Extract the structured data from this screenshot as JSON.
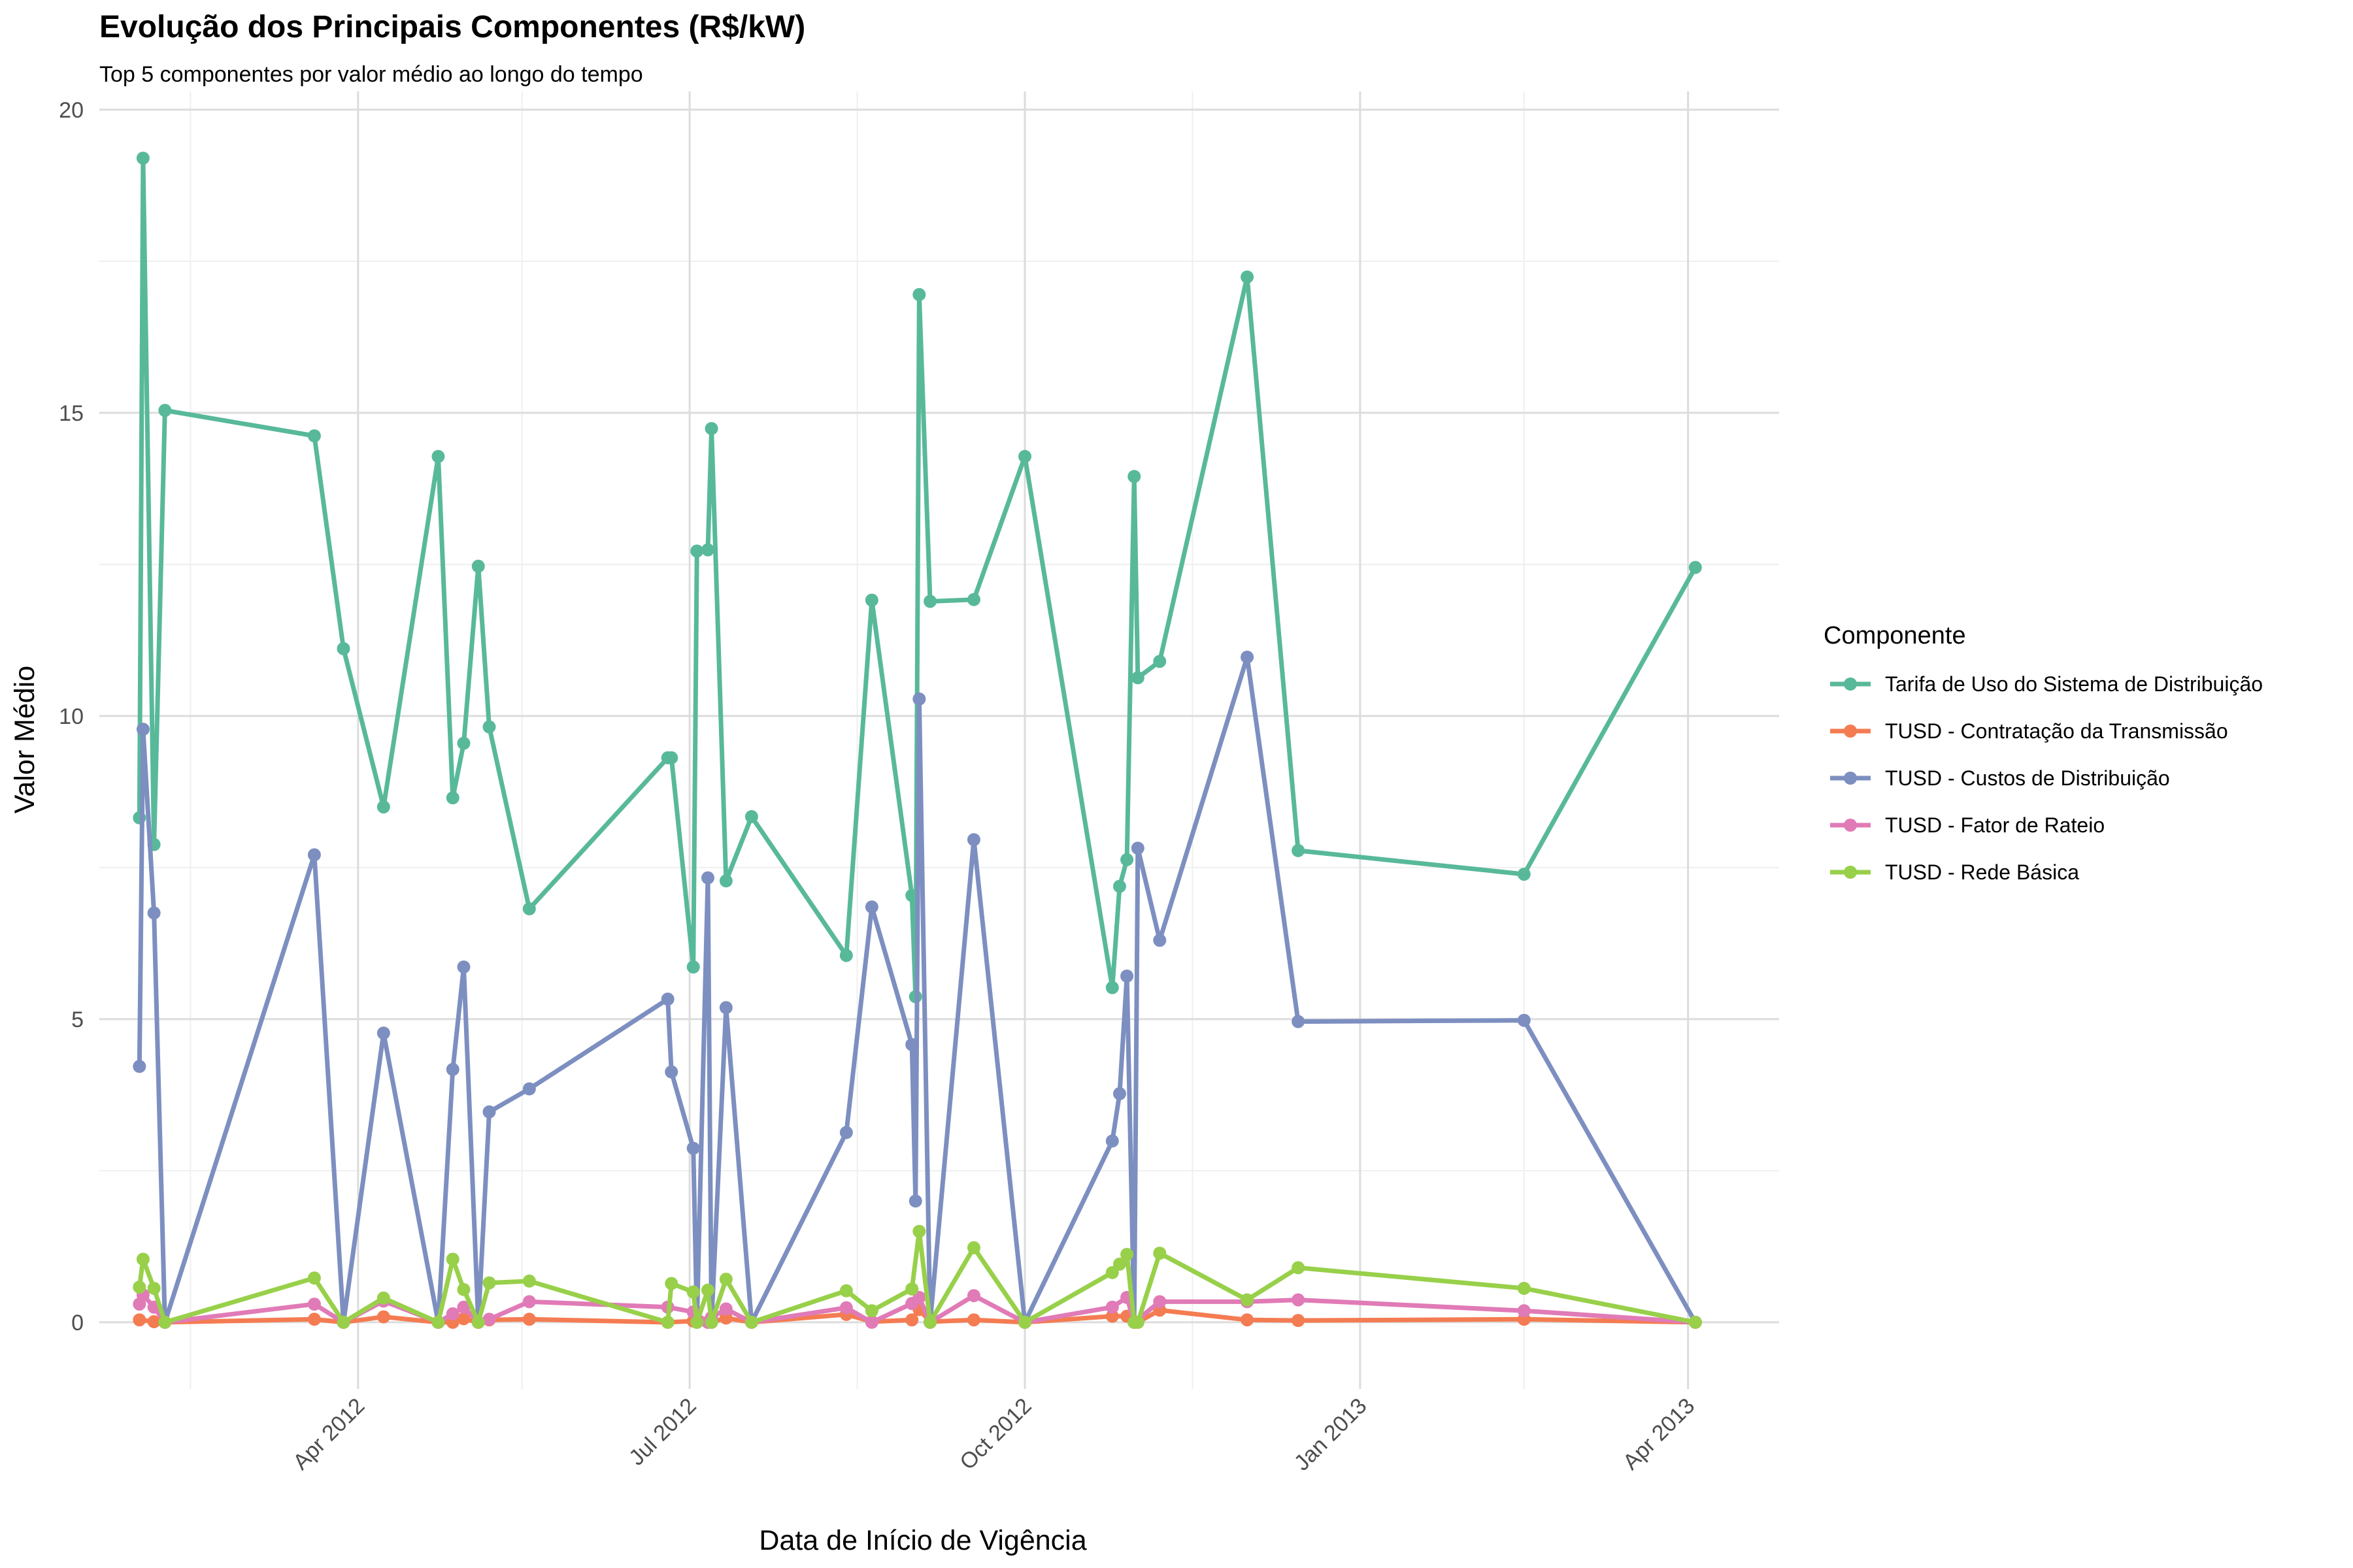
{
  "chart_data": {
    "type": "line",
    "title": "Evolução dos Principais Componentes (R$/kW)",
    "subtitle": "Top 5 componentes por valor médio ao longo do tempo",
    "xlabel": "Data de Início de Vigência",
    "ylabel": "Valor Médio",
    "x_axis": {
      "type": "date",
      "range": [
        "2012-01-21",
        "2013-04-26"
      ],
      "ticks": [
        {
          "date": "2012-04-01",
          "label": "Apr 2012"
        },
        {
          "date": "2012-07-01",
          "label": "Jul 2012"
        },
        {
          "date": "2012-10-01",
          "label": "Oct 2012"
        },
        {
          "date": "2013-01-01",
          "label": "Jan 2013"
        },
        {
          "date": "2013-04-01",
          "label": "Apr 2013"
        }
      ],
      "minor_ticks": [
        "2012-02-15",
        "2012-05-16",
        "2012-08-16",
        "2012-11-16",
        "2013-02-15"
      ]
    },
    "ylim": [
      -1.1,
      20.3
    ],
    "y_ticks": [
      0,
      5,
      10,
      15,
      20
    ],
    "y_minor_ticks": [
      2.5,
      7.5,
      12.5,
      17.5
    ],
    "grid": true,
    "legend": {
      "title": "Componente",
      "position": "right"
    },
    "series": [
      {
        "name": "Tarifa de Uso do Sistema de Distribuição",
        "color": "#58b99a",
        "points": [
          [
            "2012-02-01",
            8.32
          ],
          [
            "2012-02-02",
            19.2
          ],
          [
            "2012-02-05",
            7.88
          ],
          [
            "2012-02-08",
            15.04
          ],
          [
            "2012-03-20",
            14.62
          ],
          [
            "2012-03-28",
            11.11
          ],
          [
            "2012-04-08",
            8.5
          ],
          [
            "2012-04-23",
            14.28
          ],
          [
            "2012-04-27",
            8.65
          ],
          [
            "2012-04-30",
            9.55
          ],
          [
            "2012-05-04",
            12.47
          ],
          [
            "2012-05-07",
            9.82
          ],
          [
            "2012-05-18",
            6.82
          ],
          [
            "2012-06-25",
            9.31
          ],
          [
            "2012-06-26",
            9.31
          ],
          [
            "2012-07-02",
            5.86
          ],
          [
            "2012-07-03",
            12.72
          ],
          [
            "2012-07-06",
            12.74
          ],
          [
            "2012-07-07",
            14.74
          ],
          [
            "2012-07-11",
            7.28
          ],
          [
            "2012-07-18",
            8.34
          ],
          [
            "2012-08-13",
            6.05
          ],
          [
            "2012-08-20",
            11.91
          ],
          [
            "2012-08-31",
            7.04
          ],
          [
            "2012-09-01",
            5.37
          ],
          [
            "2012-09-02",
            16.95
          ],
          [
            "2012-09-05",
            11.89
          ],
          [
            "2012-09-17",
            11.92
          ],
          [
            "2012-10-01",
            14.28
          ],
          [
            "2012-10-25",
            5.52
          ],
          [
            "2012-10-27",
            7.19
          ],
          [
            "2012-10-29",
            7.63
          ],
          [
            "2012-10-31",
            13.95
          ],
          [
            "2012-11-01",
            10.63
          ],
          [
            "2012-11-07",
            10.9
          ],
          [
            "2012-12-01",
            17.24
          ],
          [
            "2012-12-15",
            7.78
          ],
          [
            "2013-02-15",
            7.39
          ],
          [
            "2013-04-03",
            12.45
          ]
        ]
      },
      {
        "name": "TUSD - Contratação da Transmissão",
        "color": "#f47c52",
        "points": [
          [
            "2012-02-01",
            0.04
          ],
          [
            "2012-02-05",
            0.01
          ],
          [
            "2012-02-08",
            0.0
          ],
          [
            "2012-03-20",
            0.05
          ],
          [
            "2012-03-28",
            0.0
          ],
          [
            "2012-04-08",
            0.09
          ],
          [
            "2012-04-23",
            0.0
          ],
          [
            "2012-04-27",
            0.0
          ],
          [
            "2012-04-30",
            0.06
          ],
          [
            "2012-05-04",
            0.0
          ],
          [
            "2012-05-07",
            0.04
          ],
          [
            "2012-05-18",
            0.05
          ],
          [
            "2012-06-25",
            0.0
          ],
          [
            "2012-07-02",
            0.02
          ],
          [
            "2012-07-06",
            0.0
          ],
          [
            "2012-07-07",
            0.0
          ],
          [
            "2012-07-11",
            0.07
          ],
          [
            "2012-07-18",
            0.0
          ],
          [
            "2012-08-13",
            0.13
          ],
          [
            "2012-08-20",
            0.01
          ],
          [
            "2012-08-31",
            0.04
          ],
          [
            "2012-09-02",
            0.21
          ],
          [
            "2012-09-05",
            0.01
          ],
          [
            "2012-09-17",
            0.04
          ],
          [
            "2012-10-01",
            0.0
          ],
          [
            "2012-10-25",
            0.1
          ],
          [
            "2012-10-29",
            0.1
          ],
          [
            "2012-10-31",
            0.0
          ],
          [
            "2012-11-01",
            0.0
          ],
          [
            "2012-11-07",
            0.2
          ],
          [
            "2012-12-01",
            0.04
          ],
          [
            "2012-12-15",
            0.03
          ],
          [
            "2013-02-15",
            0.05
          ],
          [
            "2013-04-03",
            0.0
          ]
        ]
      },
      {
        "name": "TUSD - Custos de Distribuição",
        "color": "#7d8fc0",
        "points": [
          [
            "2012-02-01",
            4.22
          ],
          [
            "2012-02-02",
            9.78
          ],
          [
            "2012-02-05",
            6.75
          ],
          [
            "2012-02-08",
            0.0
          ],
          [
            "2012-03-20",
            7.71
          ],
          [
            "2012-03-28",
            0.0
          ],
          [
            "2012-04-08",
            4.77
          ],
          [
            "2012-04-23",
            0.0
          ],
          [
            "2012-04-27",
            4.17
          ],
          [
            "2012-04-30",
            5.86
          ],
          [
            "2012-05-04",
            0.0
          ],
          [
            "2012-05-07",
            3.47
          ],
          [
            "2012-05-18",
            3.85
          ],
          [
            "2012-06-25",
            5.33
          ],
          [
            "2012-06-26",
            4.13
          ],
          [
            "2012-07-02",
            2.87
          ],
          [
            "2012-07-03",
            0.0
          ],
          [
            "2012-07-06",
            7.33
          ],
          [
            "2012-07-07",
            0.0
          ],
          [
            "2012-07-11",
            5.19
          ],
          [
            "2012-07-18",
            0.0
          ],
          [
            "2012-08-13",
            3.13
          ],
          [
            "2012-08-20",
            6.85
          ],
          [
            "2012-08-31",
            4.58
          ],
          [
            "2012-09-01",
            2.0
          ],
          [
            "2012-09-02",
            10.28
          ],
          [
            "2012-09-05",
            0.0
          ],
          [
            "2012-09-17",
            7.96
          ],
          [
            "2012-10-01",
            0.0
          ],
          [
            "2012-10-25",
            2.99
          ],
          [
            "2012-10-27",
            3.77
          ],
          [
            "2012-10-29",
            5.71
          ],
          [
            "2012-10-31",
            0.0
          ],
          [
            "2012-11-01",
            7.82
          ],
          [
            "2012-11-07",
            6.3
          ],
          [
            "2012-12-01",
            10.97
          ],
          [
            "2012-12-15",
            4.96
          ],
          [
            "2013-02-15",
            4.98
          ],
          [
            "2013-04-03",
            0.0
          ]
        ]
      },
      {
        "name": "TUSD - Fator de Rateio",
        "color": "#e07bb7",
        "points": [
          [
            "2012-02-01",
            0.3
          ],
          [
            "2012-02-02",
            0.45
          ],
          [
            "2012-02-05",
            0.25
          ],
          [
            "2012-02-08",
            0.0
          ],
          [
            "2012-03-20",
            0.3
          ],
          [
            "2012-03-28",
            0.0
          ],
          [
            "2012-04-08",
            0.35
          ],
          [
            "2012-04-23",
            0.0
          ],
          [
            "2012-04-27",
            0.14
          ],
          [
            "2012-04-30",
            0.25
          ],
          [
            "2012-05-04",
            0.0
          ],
          [
            "2012-05-07",
            0.05
          ],
          [
            "2012-05-18",
            0.34
          ],
          [
            "2012-06-25",
            0.25
          ],
          [
            "2012-07-02",
            0.17
          ],
          [
            "2012-07-06",
            0.0
          ],
          [
            "2012-07-07",
            0.08
          ],
          [
            "2012-07-11",
            0.22
          ],
          [
            "2012-07-18",
            0.0
          ],
          [
            "2012-08-13",
            0.24
          ],
          [
            "2012-08-20",
            0.0
          ],
          [
            "2012-08-31",
            0.31
          ],
          [
            "2012-09-02",
            0.41
          ],
          [
            "2012-09-05",
            0.0
          ],
          [
            "2012-09-17",
            0.44
          ],
          [
            "2012-10-01",
            0.0
          ],
          [
            "2012-10-25",
            0.25
          ],
          [
            "2012-10-29",
            0.41
          ],
          [
            "2012-10-31",
            0.0
          ],
          [
            "2012-11-07",
            0.34
          ],
          [
            "2012-12-01",
            0.34
          ],
          [
            "2012-12-15",
            0.37
          ],
          [
            "2013-02-15",
            0.19
          ],
          [
            "2013-04-03",
            0.0
          ]
        ]
      },
      {
        "name": "TUSD - Rede Básica",
        "color": "#98d04a",
        "points": [
          [
            "2012-02-01",
            0.58
          ],
          [
            "2012-02-02",
            1.04
          ],
          [
            "2012-02-05",
            0.56
          ],
          [
            "2012-02-08",
            0.0
          ],
          [
            "2012-03-20",
            0.73
          ],
          [
            "2012-03-28",
            0.0
          ],
          [
            "2012-04-08",
            0.4
          ],
          [
            "2012-04-23",
            0.0
          ],
          [
            "2012-04-27",
            1.04
          ],
          [
            "2012-04-30",
            0.54
          ],
          [
            "2012-05-04",
            0.0
          ],
          [
            "2012-05-07",
            0.65
          ],
          [
            "2012-05-18",
            0.68
          ],
          [
            "2012-06-25",
            0.0
          ],
          [
            "2012-06-26",
            0.64
          ],
          [
            "2012-07-02",
            0.5
          ],
          [
            "2012-07-03",
            0.0
          ],
          [
            "2012-07-06",
            0.53
          ],
          [
            "2012-07-07",
            0.0
          ],
          [
            "2012-07-11",
            0.71
          ],
          [
            "2012-07-18",
            0.0
          ],
          [
            "2012-08-13",
            0.52
          ],
          [
            "2012-08-20",
            0.19
          ],
          [
            "2012-08-31",
            0.55
          ],
          [
            "2012-09-02",
            1.5
          ],
          [
            "2012-09-05",
            0.0
          ],
          [
            "2012-09-17",
            1.23
          ],
          [
            "2012-10-01",
            0.0
          ],
          [
            "2012-10-25",
            0.82
          ],
          [
            "2012-10-27",
            0.96
          ],
          [
            "2012-10-29",
            1.12
          ],
          [
            "2012-10-31",
            0.0
          ],
          [
            "2012-11-01",
            0.0
          ],
          [
            "2012-11-07",
            1.14
          ],
          [
            "2012-12-01",
            0.37
          ],
          [
            "2012-12-15",
            0.9
          ],
          [
            "2013-02-15",
            0.56
          ],
          [
            "2013-04-03",
            0.0
          ]
        ]
      }
    ]
  }
}
